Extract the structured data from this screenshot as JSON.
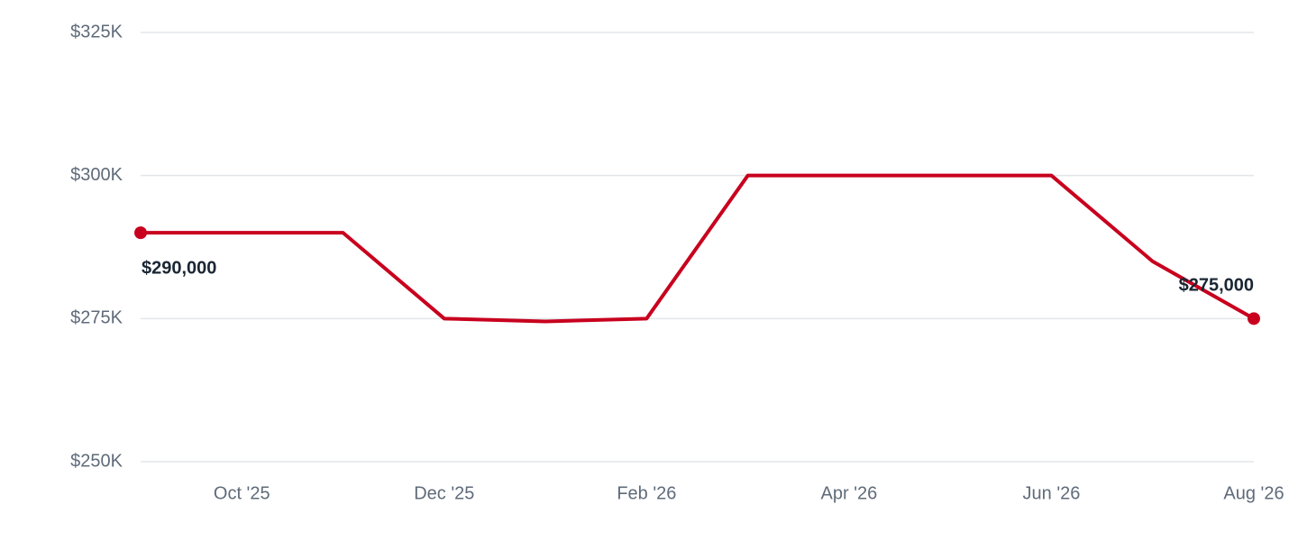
{
  "chart_data": {
    "type": "line",
    "categories": [
      null,
      "Oct '25",
      null,
      "Dec '25",
      null,
      "Feb '26",
      null,
      "Apr '26",
      null,
      "Jun '26",
      null,
      "Aug '26"
    ],
    "series": [
      {
        "color": "#c8001e",
        "values": [
          290000,
          290000,
          290000,
          275000,
          274500,
          275000,
          300000,
          300000,
          300000,
          300000,
          285000,
          275000
        ],
        "value_labels": [
          "$290,000",
          null,
          null,
          null,
          null,
          null,
          null,
          null,
          null,
          null,
          null,
          "$275,000"
        ]
      }
    ],
    "ylim": [
      250000,
      325000
    ],
    "yticks": [
      {
        "value": 250000,
        "label": "$250K"
      },
      {
        "value": 275000,
        "label": "$275K"
      },
      {
        "value": 300000,
        "label": "$300K"
      },
      {
        "value": 325000,
        "label": "$325K"
      }
    ],
    "grid": true
  }
}
